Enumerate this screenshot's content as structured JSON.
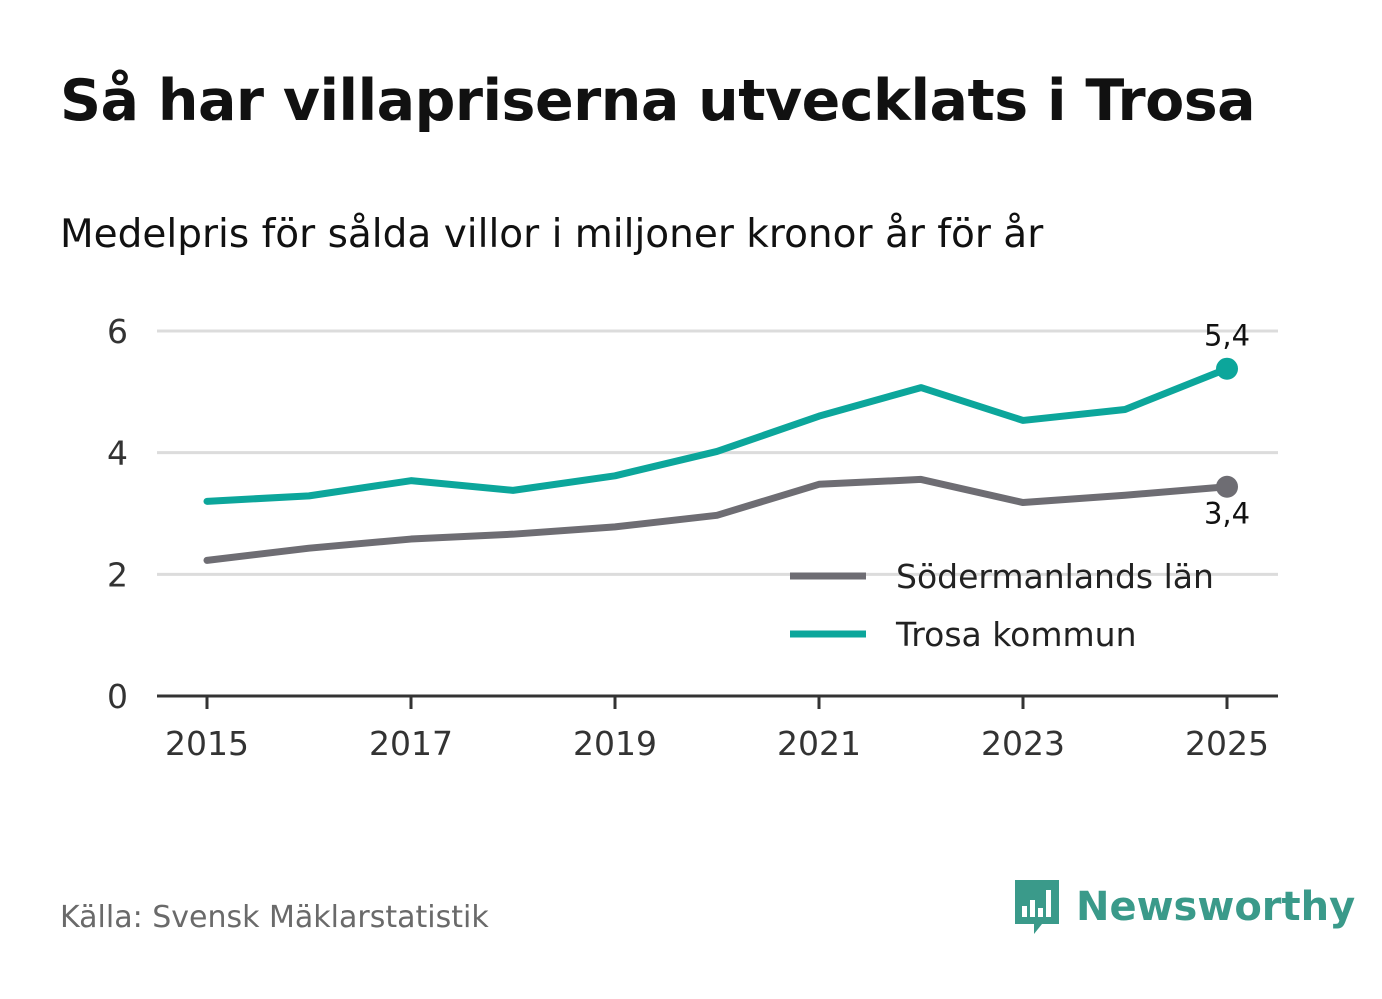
{
  "title": "Så har villapriserna utvecklats i Trosa",
  "subtitle": "Medelpris för sålda villor i miljoner kronor år för år",
  "source": "Källa: Svensk Mäklarstatistik",
  "brand": {
    "name": "Newsworthy",
    "icon": "bar-chart-speech-bubble-icon",
    "color": "#3a9a8a"
  },
  "chart_data": {
    "type": "line",
    "x": [
      2015,
      2016,
      2017,
      2018,
      2019,
      2020,
      2021,
      2022,
      2023,
      2024,
      2025
    ],
    "xticks": [
      "2015",
      "2017",
      "2019",
      "2021",
      "2023",
      "2025"
    ],
    "yticks": [
      "0",
      "2",
      "4",
      "6"
    ],
    "ylim": [
      0,
      6
    ],
    "grid": true,
    "legend_position": "bottom-right",
    "series": [
      {
        "name": "Södermanlands län",
        "color": "#6e6d73",
        "values": [
          2.23,
          2.43,
          2.58,
          2.66,
          2.78,
          2.97,
          3.48,
          3.56,
          3.18,
          3.3,
          3.44
        ],
        "end_label": "3,4"
      },
      {
        "name": "Trosa kommun",
        "color": "#0ca69b",
        "values": [
          3.2,
          3.29,
          3.54,
          3.38,
          3.62,
          4.02,
          4.6,
          5.07,
          4.53,
          4.71,
          5.38
        ],
        "end_label": "5,4"
      }
    ]
  }
}
